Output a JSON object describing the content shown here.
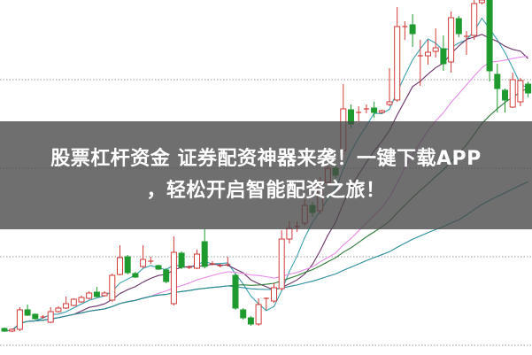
{
  "banner": {
    "line1": "股票杠杆资金 证券配资神器来袭！一键下载APP",
    "line2": "，轻松开启智能配资之旅！"
  },
  "chart_data": {
    "type": "candlestick",
    "title": "",
    "xlabel": "",
    "ylabel": "",
    "ylim": [
      0,
      400
    ],
    "grid": "horizontal dotted",
    "up_color": "#d23a3a",
    "down_color": "#1f9a2f",
    "ohlc_format": [
      "open",
      "high",
      "low",
      "close"
    ],
    "candles": [
      [
        29,
        30,
        25,
        26
      ],
      [
        26,
        29,
        25,
        28
      ],
      [
        28,
        53,
        26,
        50
      ],
      [
        50,
        56,
        43,
        44
      ],
      [
        45,
        46,
        39,
        40
      ],
      [
        42,
        44,
        40,
        42
      ],
      [
        36,
        53,
        35,
        48
      ],
      [
        48,
        54,
        47,
        52
      ],
      [
        52,
        65,
        51,
        57
      ],
      [
        55,
        63,
        54,
        62
      ],
      [
        59,
        66,
        58,
        64
      ],
      [
        63,
        71,
        62,
        69
      ],
      [
        70,
        76,
        64,
        65
      ],
      [
        66,
        71,
        65,
        69
      ],
      [
        61,
        91,
        59,
        89
      ],
      [
        90,
        123,
        89,
        109
      ],
      [
        110,
        112,
        90,
        92
      ],
      [
        91,
        93,
        86,
        87
      ],
      [
        99,
        123,
        97,
        107
      ],
      [
        105,
        110,
        102,
        105
      ],
      [
        100,
        101,
        95,
        96
      ],
      [
        95,
        97,
        80,
        82
      ],
      [
        57,
        133,
        55,
        115
      ],
      [
        114,
        116,
        96,
        98
      ],
      [
        98,
        100,
        96,
        98
      ],
      [
        97,
        118,
        96,
        113
      ],
      [
        127,
        141,
        97,
        99
      ],
      [
        102,
        105,
        100,
        102
      ],
      [
        100,
        102,
        98,
        100
      ],
      [
        101,
        110,
        99,
        101
      ],
      [
        89,
        91,
        50,
        52
      ],
      [
        50,
        52,
        39,
        41
      ],
      [
        41,
        43,
        32,
        34
      ],
      [
        34,
        63,
        32,
        56
      ],
      [
        63,
        64,
        50,
        63
      ],
      [
        60,
        80,
        58,
        75
      ],
      [
        74,
        140,
        72,
        130
      ],
      [
        130,
        150,
        125,
        142
      ],
      [
        144,
        150,
        138,
        144
      ],
      [
        148,
        175,
        145,
        168
      ],
      [
        168,
        172,
        155,
        160
      ],
      [
        162,
        200,
        158,
        195
      ],
      [
        194,
        215,
        190,
        210
      ],
      [
        210,
        214,
        198,
        202
      ],
      [
        230,
        305,
        225,
        277
      ],
      [
        276,
        282,
        255,
        260
      ],
      [
        273,
        280,
        263,
        273
      ],
      [
        277,
        282,
        272,
        277
      ],
      [
        278,
        285,
        267,
        273
      ],
      [
        273,
        276,
        272,
        275
      ],
      [
        282,
        323,
        280,
        285
      ],
      [
        287,
        392,
        285,
        370
      ],
      [
        370,
        376,
        355,
        370
      ],
      [
        372,
        384,
        347,
        362
      ],
      [
        337,
        355,
        303,
        337
      ],
      [
        337,
        355,
        327,
        341
      ],
      [
        342,
        368,
        335,
        346
      ],
      [
        345,
        360,
        320,
        328
      ],
      [
        330,
        387,
        318,
        380
      ],
      [
        379,
        382,
        358,
        362
      ],
      [
        359,
        365,
        338,
        359
      ],
      [
        360,
        400,
        355,
        396
      ],
      [
        397,
        402,
        395,
        400
      ],
      [
        402,
        405,
        308,
        320
      ],
      [
        316,
        328,
        273,
        300
      ],
      [
        298,
        300,
        273,
        287
      ],
      [
        279,
        318,
        278,
        310
      ],
      [
        285,
        312,
        280,
        309
      ],
      [
        305,
        308,
        290,
        295
      ]
    ],
    "moving_averages": [
      {
        "period": 5,
        "color": "#3a9fb0"
      },
      {
        "period": 10,
        "color": "#6b3468"
      },
      {
        "period": 20,
        "color": "#e68ae6"
      },
      {
        "period": 30,
        "color": "#2f7a3a"
      },
      {
        "period": 60,
        "color": "#2a8c9c"
      }
    ]
  }
}
